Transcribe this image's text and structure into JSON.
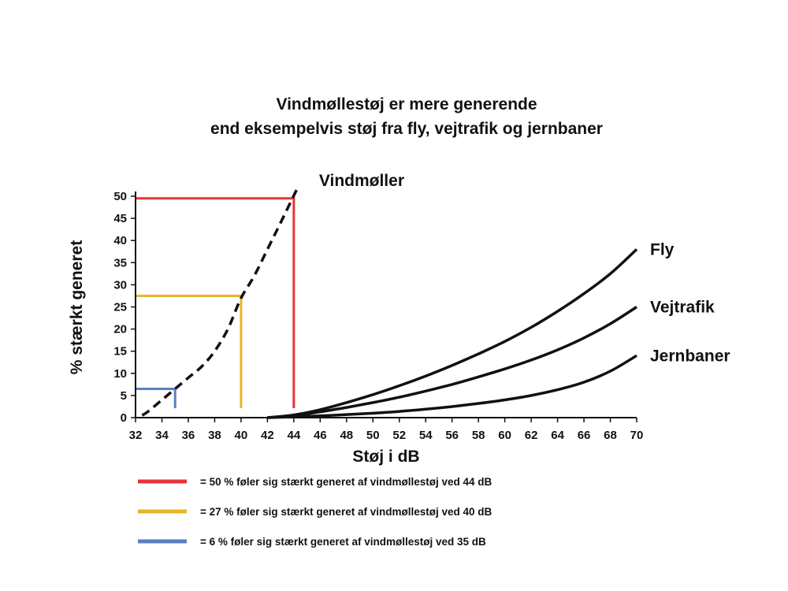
{
  "chart_data": {
    "type": "line",
    "title": [
      "Vindmøllestøj er mere generende",
      "end eksempelvis støj fra fly, vejtrafik og jernbaner"
    ],
    "xlabel": "Støj i dB",
    "ylabel": "% stærkt generet",
    "xlim": [
      32,
      70
    ],
    "ylim": [
      0,
      50
    ],
    "x_ticks": [
      32,
      34,
      36,
      38,
      40,
      42,
      44,
      46,
      48,
      50,
      52,
      54,
      56,
      58,
      60,
      62,
      64,
      66,
      68,
      70
    ],
    "y_ticks": [
      0,
      5,
      10,
      15,
      20,
      25,
      30,
      35,
      40,
      45,
      50
    ],
    "grid": false,
    "series": [
      {
        "name": "Vindmøller",
        "style": "dashed",
        "color": "#111111",
        "x": [
          32.5,
          33,
          34,
          35,
          36,
          37,
          38,
          39,
          40,
          41,
          42,
          43,
          44.3
        ],
        "y": [
          0.5,
          1.5,
          4,
          6.5,
          9,
          11.5,
          15,
          20,
          27,
          32,
          38,
          44,
          52
        ]
      },
      {
        "name": "Fly",
        "style": "solid",
        "color": "#111111",
        "x": [
          42,
          44,
          46,
          48,
          50,
          52,
          54,
          56,
          58,
          60,
          62,
          64,
          66,
          68,
          70
        ],
        "y": [
          0,
          0.6,
          1.8,
          3.4,
          5.2,
          7.2,
          9.4,
          11.8,
          14.4,
          17.2,
          20.4,
          24,
          28,
          32.5,
          38
        ]
      },
      {
        "name": "Vejtrafik",
        "style": "solid",
        "color": "#111111",
        "x": [
          42,
          44,
          46,
          48,
          50,
          52,
          54,
          56,
          58,
          60,
          62,
          64,
          66,
          68,
          70
        ],
        "y": [
          0,
          0.5,
          1.3,
          2.3,
          3.4,
          4.6,
          6,
          7.5,
          9.2,
          11,
          13,
          15.3,
          18,
          21.2,
          25
        ]
      },
      {
        "name": "Jernbaner",
        "style": "solid",
        "color": "#111111",
        "x": [
          42,
          44,
          46,
          48,
          50,
          52,
          54,
          56,
          58,
          60,
          62,
          64,
          66,
          68,
          70
        ],
        "y": [
          0,
          0.2,
          0.4,
          0.7,
          1,
          1.4,
          1.9,
          2.5,
          3.2,
          4,
          5,
          6.3,
          8,
          10.5,
          14
        ]
      }
    ],
    "reference_lines": [
      {
        "color": "#e8333a",
        "x": 44,
        "y": 49.5
      },
      {
        "color": "#e8b52a",
        "x": 40,
        "y": 27.5
      },
      {
        "color": "#5b7fc4",
        "x": 35,
        "y": 6.5
      }
    ],
    "legend": [
      {
        "color": "#e8333a",
        "text": "= 50 % føler sig stærkt generet af vindmøllestøj ved 44 dB"
      },
      {
        "color": "#e8b52a",
        "text": "= 27 % føler sig stærkt generet af vindmøllestøj ved 40 dB"
      },
      {
        "color": "#5b7fc4",
        "text": "=   6 % føler sig stærkt generet af vindmøllestøj ved 35 dB"
      }
    ],
    "legend_placement": "bottom"
  }
}
